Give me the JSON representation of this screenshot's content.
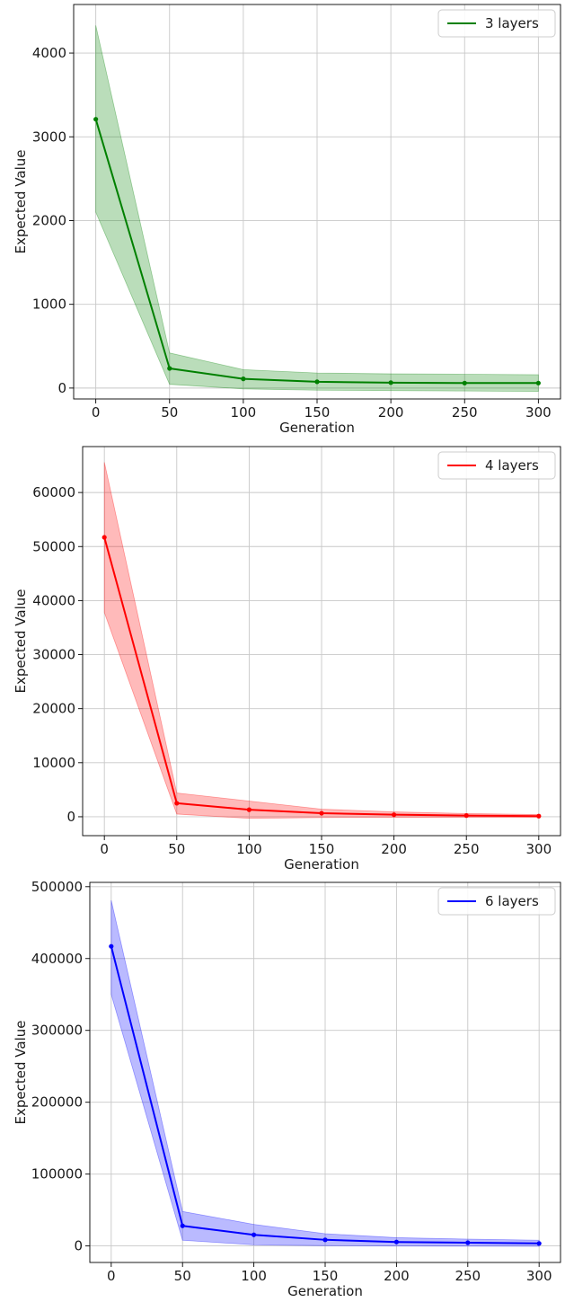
{
  "chart_data": [
    {
      "type": "line",
      "xlabel": "Generation",
      "ylabel": "Expected Value",
      "x": [
        0,
        50,
        100,
        150,
        200,
        250,
        300
      ],
      "xlim": [
        -15,
        315
      ],
      "ylim": [
        -130,
        4580
      ],
      "xticks": [
        "0",
        "50",
        "100",
        "150",
        "200",
        "250",
        "300"
      ],
      "yticks": [
        "0",
        "1000",
        "2000",
        "3000",
        "4000"
      ],
      "grid": true,
      "legend_position": "top-right",
      "series": [
        {
          "name": "3 layers",
          "color": "#008000",
          "y": [
            3210,
            235,
            110,
            75,
            65,
            60,
            60
          ],
          "band_upper": [
            4330,
            420,
            220,
            180,
            170,
            165,
            160
          ],
          "band_lower": [
            2100,
            45,
            -10,
            -25,
            -30,
            -35,
            -40
          ]
        }
      ]
    },
    {
      "type": "line",
      "xlabel": "Generation",
      "ylabel": "Expected Value",
      "x": [
        0,
        50,
        100,
        150,
        200,
        250,
        300
      ],
      "xlim": [
        -15,
        315
      ],
      "ylim": [
        -3500,
        68500
      ],
      "xticks": [
        "0",
        "50",
        "100",
        "150",
        "200",
        "250",
        "300"
      ],
      "yticks": [
        "0",
        "10000",
        "20000",
        "30000",
        "40000",
        "50000",
        "60000"
      ],
      "grid": true,
      "legend_position": "top-right",
      "series": [
        {
          "name": "4 layers",
          "color": "#ff0000",
          "y": [
            51700,
            2500,
            1300,
            650,
            380,
            220,
            120
          ],
          "band_upper": [
            65600,
            4400,
            2900,
            1400,
            900,
            600,
            400
          ],
          "band_lower": [
            37800,
            500,
            -300,
            -150,
            -100,
            -100,
            -100
          ]
        }
      ]
    },
    {
      "type": "line",
      "xlabel": "Generation",
      "ylabel": "Expected Value",
      "x": [
        0,
        50,
        100,
        150,
        200,
        250,
        300
      ],
      "xlim": [
        -15,
        315
      ],
      "ylim": [
        -23000,
        506000
      ],
      "xticks": [
        "0",
        "50",
        "100",
        "150",
        "200",
        "250",
        "300"
      ],
      "yticks": [
        "0",
        "100000",
        "200000",
        "300000",
        "400000",
        "500000"
      ],
      "grid": true,
      "legend_position": "top-right",
      "series": [
        {
          "name": "6 layers",
          "color": "#0000ff",
          "y": [
            417000,
            28000,
            15500,
            8500,
            5500,
            4500,
            3500
          ],
          "band_upper": [
            481000,
            48000,
            30000,
            17000,
            11500,
            9500,
            8000
          ],
          "band_lower": [
            350000,
            8000,
            1500,
            400,
            -200,
            -300,
            -500
          ]
        }
      ]
    }
  ]
}
